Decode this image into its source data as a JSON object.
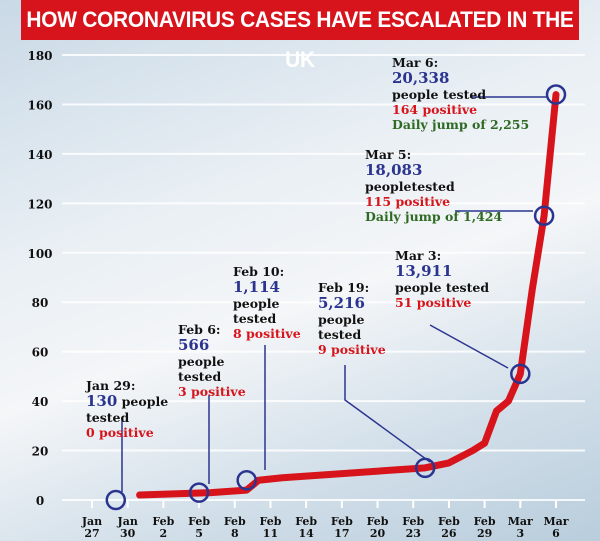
{
  "title": "HOW CORONAVIRUS CASES HAVE ESCALATED IN THE UK",
  "chart_data": {
    "type": "line",
    "title": "HOW CORONAVIRUS CASES HAVE ESCALATED IN THE UK",
    "xlabel": "",
    "ylabel": "",
    "ylim": [
      0,
      180
    ],
    "yticks": [
      "0",
      "20",
      "40",
      "60",
      "80",
      "100",
      "120",
      "140",
      "160",
      "180"
    ],
    "xticks": [
      [
        "Jan",
        "27"
      ],
      [
        "Jan",
        "30"
      ],
      [
        "Feb",
        "2"
      ],
      [
        "Feb",
        "5"
      ],
      [
        "Feb",
        "8"
      ],
      [
        "Feb",
        "11"
      ],
      [
        "Feb",
        "14"
      ],
      [
        "Feb",
        "17"
      ],
      [
        "Feb",
        "20"
      ],
      [
        "Feb",
        "23"
      ],
      [
        "Feb",
        "26"
      ],
      [
        "Feb",
        "29"
      ],
      [
        "Mar",
        "3"
      ],
      [
        "Mar",
        "6"
      ]
    ],
    "xrange": [
      "2020-01-27",
      "2020-03-06"
    ],
    "grid": true,
    "line_color": "#d7141b",
    "series": [
      {
        "points": [
          [
            "2020-01-31",
            2
          ],
          [
            "2020-02-06",
            3
          ],
          [
            "2020-02-09",
            4
          ],
          [
            "2020-02-10",
            8
          ],
          [
            "2020-02-12",
            9
          ],
          [
            "2020-02-24",
            13
          ],
          [
            "2020-02-26",
            15
          ],
          [
            "2020-02-28",
            20
          ],
          [
            "2020-02-29",
            23
          ],
          [
            "2020-03-01",
            36
          ],
          [
            "2020-03-02",
            40
          ],
          [
            "2020-03-03",
            51
          ],
          [
            "2020-03-04",
            85
          ],
          [
            "2020-03-05",
            115
          ],
          [
            "2020-03-06",
            164
          ]
        ]
      }
    ],
    "markers": [
      [
        "2020-01-29",
        0
      ],
      [
        "2020-02-05",
        3
      ],
      [
        "2020-02-09",
        8
      ],
      [
        "2020-02-24",
        13
      ],
      [
        "2020-03-03",
        51
      ],
      [
        "2020-03-05",
        115
      ],
      [
        "2020-03-06",
        164
      ]
    ],
    "annotations": [
      {
        "date": "Jan 29:",
        "tested": "130",
        "tested_label": "people tested",
        "positive": "0 positive"
      },
      {
        "date": "Feb 6:",
        "tested": "566",
        "tested_label": "people tested",
        "positive": "3 positive"
      },
      {
        "date": "Feb 10:",
        "tested": "1,114",
        "tested_label": "people tested",
        "positive": "8 positive"
      },
      {
        "date": "Feb 19:",
        "tested": "5,216",
        "tested_label": "people tested",
        "positive": "9 positive"
      },
      {
        "date": "Mar 3:",
        "tested": "13,911",
        "tested_label": "people tested",
        "positive": "51 positive"
      },
      {
        "date": "Mar 5:",
        "tested": "18,083",
        "tested_label": "peopletested",
        "positive": "115 positive",
        "jump": "Daily jump of 1,424"
      },
      {
        "date": "Mar 6:",
        "tested": "20,338",
        "tested_label": "people tested",
        "positive": "164 positive",
        "jump": "Daily jump of 2,255"
      }
    ]
  }
}
